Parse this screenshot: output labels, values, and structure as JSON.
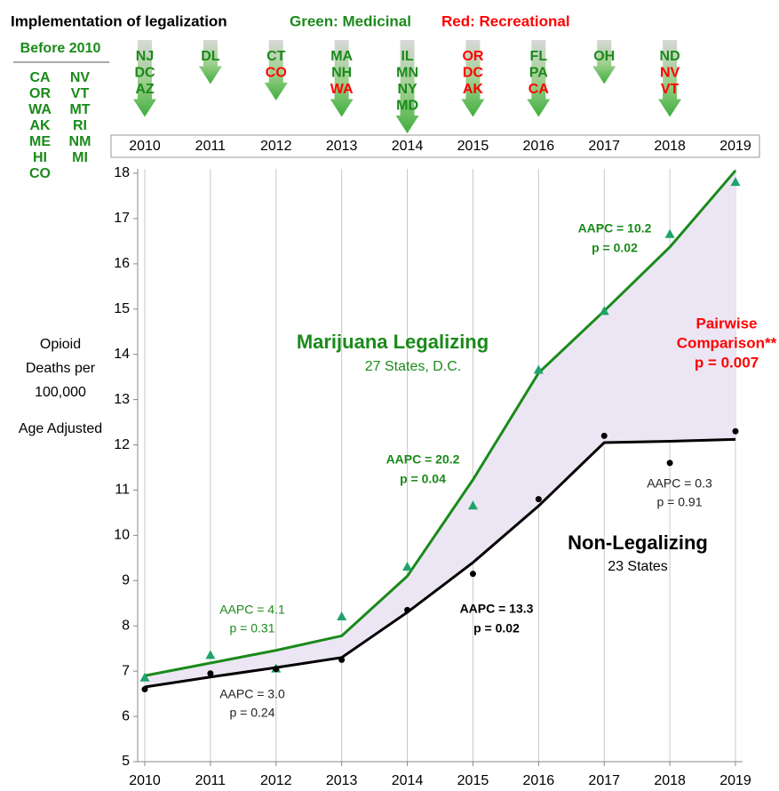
{
  "chart_data": {
    "type": "line",
    "title": "Implementation of legalization",
    "medicinal_label": "Green: Medicinal",
    "recreational_label": "Red: Recreational",
    "medicinal_color": "#1a8a1a",
    "recreational_color": "#ff0000",
    "before_2010": {
      "label": "Before 2010",
      "states": [
        "CA",
        "NV",
        "OR",
        "VT",
        "WA",
        "MT",
        "AK",
        "RI",
        "ME",
        "NM",
        "HI",
        "MI",
        "CO"
      ]
    },
    "legalization_by_year": [
      [
        {
          "name": "NJ",
          "kind": "medicinal"
        },
        {
          "name": "DC",
          "kind": "medicinal"
        },
        {
          "name": "AZ",
          "kind": "medicinal"
        }
      ],
      [
        {
          "name": "DL",
          "kind": "medicinal"
        }
      ],
      [
        {
          "name": "CT",
          "kind": "medicinal"
        },
        {
          "name": "CO",
          "kind": "recreational"
        }
      ],
      [
        {
          "name": "MA",
          "kind": "medicinal"
        },
        {
          "name": "NH",
          "kind": "medicinal"
        },
        {
          "name": "WA",
          "kind": "recreational"
        }
      ],
      [
        {
          "name": "IL",
          "kind": "medicinal"
        },
        {
          "name": "MN",
          "kind": "medicinal"
        },
        {
          "name": "NY",
          "kind": "medicinal"
        },
        {
          "name": "MD",
          "kind": "medicinal"
        }
      ],
      [
        {
          "name": "OR",
          "kind": "recreational"
        },
        {
          "name": "DC",
          "kind": "recreational"
        },
        {
          "name": "AK",
          "kind": "recreational"
        }
      ],
      [
        {
          "name": "FL",
          "kind": "medicinal"
        },
        {
          "name": "PA",
          "kind": "medicinal"
        },
        {
          "name": "CA",
          "kind": "recreational"
        }
      ],
      [
        {
          "name": "OH",
          "kind": "medicinal"
        }
      ],
      [
        {
          "name": "ND",
          "kind": "medicinal"
        },
        {
          "name": "NV",
          "kind": "recreational"
        },
        {
          "name": "VT",
          "kind": "recreational"
        }
      ],
      []
    ],
    "y_label": [
      "Opioid",
      "Deaths per",
      "100,000",
      "Age Adjusted"
    ],
    "x": [
      2010,
      2011,
      2012,
      2013,
      2014,
      2015,
      2016,
      2017,
      2018,
      2019
    ],
    "xlim": [
      2010,
      2019
    ],
    "xticks": [
      2010,
      2011,
      2012,
      2013,
      2014,
      2015,
      2016,
      2017,
      2018,
      2019
    ],
    "ylim": [
      5,
      18
    ],
    "yticks": [
      5,
      6,
      7,
      8,
      9,
      10,
      11,
      12,
      13,
      14,
      15,
      16,
      17,
      18
    ],
    "grid": true,
    "area_color": "#ece6f4",
    "series": [
      {
        "name": "Marijuana Legalizing",
        "subtitle": "27 States, D.C.",
        "color": "#1a8a1a",
        "marker": "triangle",
        "marker_color": "#1fa36b",
        "values": [
          6.85,
          7.35,
          7.05,
          8.2,
          9.3,
          10.65,
          13.65,
          14.95,
          16.65,
          17.8
        ],
        "fit": [
          6.9,
          7.18,
          7.46,
          7.78,
          9.1,
          11.23,
          13.59,
          14.96,
          16.37,
          18.06
        ]
      },
      {
        "name": "Non-Legalizing",
        "subtitle": "23 States",
        "color": "#000000",
        "marker": "circle",
        "marker_color": "#000000",
        "values": [
          6.6,
          6.95,
          7.05,
          7.25,
          8.35,
          9.15,
          10.8,
          12.2,
          11.6,
          12.3
        ],
        "fit": [
          6.65,
          6.87,
          7.08,
          7.3,
          8.3,
          9.4,
          10.65,
          12.05,
          12.08,
          12.12
        ]
      }
    ],
    "annotations": [
      {
        "lines": [
          "AAPC = 4.1",
          "p = 0.31"
        ],
        "color": "#1a8a1a",
        "bold": false
      },
      {
        "lines": [
          "AAPC = 3.0",
          "p = 0.24"
        ],
        "color": "#222222",
        "bold": false
      },
      {
        "lines": [
          "AAPC = 20.2",
          "p = 0.04"
        ],
        "color": "#1a8a1a",
        "bold": true
      },
      {
        "lines": [
          "AAPC = 13.3",
          "p = 0.02"
        ],
        "color": "#000000",
        "bold": true
      },
      {
        "lines": [
          "AAPC = 10.2",
          "p = 0.02"
        ],
        "color": "#1a8a1a",
        "bold": true
      },
      {
        "lines": [
          "AAPC = 0.3",
          "p = 0.91"
        ],
        "color": "#222222",
        "bold": false
      },
      {
        "lines": [
          "Pairwise",
          "Comparison**",
          "p = 0.007"
        ],
        "color": "#ff0000",
        "bold": true
      }
    ]
  }
}
